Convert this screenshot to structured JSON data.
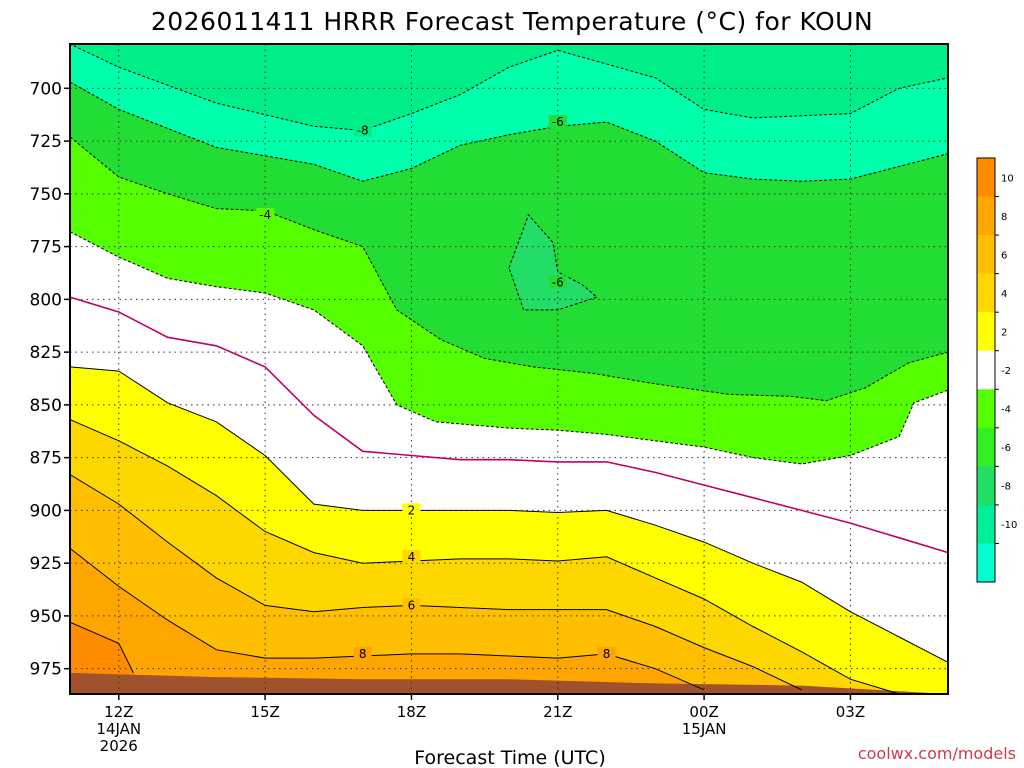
{
  "chart_data": {
    "type": "contour",
    "title": "2026011411 HRRR Forecast Temperature (°C) for KOUN",
    "xlabel": "Forecast Time (UTC)",
    "ylabel": "",
    "credit": "coolwx.com/models",
    "x_unit": "forecast hour from 2026-01-14 11Z",
    "xlim": [
      0,
      18
    ],
    "ylim": [
      987,
      679
    ],
    "y_ticks": [
      700,
      725,
      750,
      775,
      800,
      825,
      850,
      875,
      900,
      925,
      950,
      975
    ],
    "x_ticks": [
      {
        "x": 1,
        "lines": [
          "12Z",
          "14JAN",
          "2026"
        ]
      },
      {
        "x": 4,
        "lines": [
          "15Z"
        ]
      },
      {
        "x": 7,
        "lines": [
          "18Z"
        ]
      },
      {
        "x": 10,
        "lines": [
          "21Z"
        ]
      },
      {
        "x": 13,
        "lines": [
          "00Z",
          "15JAN"
        ]
      },
      {
        "x": 16,
        "lines": [
          "03Z"
        ]
      }
    ],
    "grid": true,
    "colorbar": {
      "ticks": [
        10,
        8,
        6,
        4,
        2,
        -2,
        -4,
        -6,
        -8,
        -10
      ],
      "bands": [
        {
          "color": "#ff8c00"
        },
        {
          "color": "#ffa500"
        },
        {
          "color": "#ffbf00"
        },
        {
          "color": "#ffd700"
        },
        {
          "color": "#ffff00"
        },
        {
          "color": "#ffffff"
        },
        {
          "color": "#55ff00"
        },
        {
          "color": "#33ee22"
        },
        {
          "color": "#22dd66"
        },
        {
          "color": "#00ee99"
        },
        {
          "color": "#00ffcc"
        }
      ]
    },
    "contours": [
      {
        "value": -10,
        "fill": "#00ffaa",
        "line": "none",
        "points": [
          [
            0,
            679
          ],
          [
            18,
            679
          ],
          [
            18,
            695
          ],
          [
            17,
            700
          ],
          [
            16,
            712
          ],
          [
            14,
            714
          ],
          [
            13,
            710
          ],
          [
            12,
            695
          ],
          [
            10,
            682
          ],
          [
            9,
            690
          ],
          [
            8,
            703
          ],
          [
            7,
            712
          ],
          [
            6,
            720
          ],
          [
            5,
            718
          ],
          [
            3,
            707
          ],
          [
            1,
            690
          ],
          [
            0,
            679
          ]
        ]
      },
      {
        "value": -8,
        "fill": "#00ee88",
        "line": "dashed",
        "labels": [
          {
            "x": 6,
            "y": 720,
            "text": "-8"
          }
        ],
        "points": [
          [
            0,
            679
          ],
          [
            18,
            679
          ],
          [
            18,
            695
          ],
          [
            17,
            700
          ],
          [
            16,
            712
          ],
          [
            14,
            714
          ],
          [
            13,
            710
          ],
          [
            12,
            695
          ],
          [
            10,
            682
          ],
          [
            9,
            690
          ],
          [
            8,
            703
          ],
          [
            7,
            712
          ],
          [
            6,
            720
          ],
          [
            5,
            718
          ],
          [
            3,
            707
          ],
          [
            1,
            690
          ],
          [
            0,
            679
          ]
        ]
      },
      {
        "value": -6,
        "fill": "#22dd33",
        "line": "dashed",
        "labels": [
          {
            "x": 10,
            "y": 716,
            "text": "-6"
          },
          {
            "x": 10,
            "y": 792,
            "text": "-6"
          }
        ],
        "points": [
          [
            0,
            697
          ],
          [
            1,
            710
          ],
          [
            3,
            728
          ],
          [
            5,
            736
          ],
          [
            6,
            744
          ],
          [
            7,
            738
          ],
          [
            8,
            727
          ],
          [
            9,
            722
          ],
          [
            10,
            718
          ],
          [
            11,
            716
          ],
          [
            12,
            725
          ],
          [
            13,
            740
          ],
          [
            14,
            743
          ],
          [
            15,
            744
          ],
          [
            16,
            743
          ],
          [
            17,
            737
          ],
          [
            18,
            731
          ]
        ]
      },
      {
        "value": -4,
        "fill": "#55ff00",
        "line": "dashed",
        "labels": [
          {
            "x": 4,
            "y": 760,
            "text": "-4"
          }
        ],
        "points": [
          [
            0,
            723
          ],
          [
            1,
            742
          ],
          [
            2,
            750
          ],
          [
            3,
            757
          ],
          [
            4,
            758
          ],
          [
            5,
            767
          ],
          [
            6,
            775
          ],
          [
            6.7,
            805
          ],
          [
            7.6,
            819
          ],
          [
            8.5,
            828
          ],
          [
            9.5,
            832
          ],
          [
            10.7,
            835
          ],
          [
            12,
            840
          ],
          [
            13.5,
            845
          ],
          [
            14.8,
            846
          ],
          [
            15.5,
            848
          ],
          [
            16.3,
            842
          ],
          [
            17.2,
            830
          ],
          [
            18,
            825
          ]
        ]
      },
      {
        "value": -2,
        "fill": "#ffffff",
        "line": "dashed",
        "points": [
          [
            0,
            768
          ],
          [
            1,
            780
          ],
          [
            2,
            790
          ],
          [
            3,
            794
          ],
          [
            4,
            797
          ],
          [
            5,
            805
          ],
          [
            6,
            822
          ],
          [
            6.7,
            850
          ],
          [
            7.5,
            858
          ],
          [
            9,
            861
          ],
          [
            10,
            862
          ],
          [
            11,
            864
          ],
          [
            12,
            867
          ],
          [
            13,
            870
          ],
          [
            14,
            875
          ],
          [
            15,
            878
          ],
          [
            16,
            874
          ],
          [
            17,
            865
          ],
          [
            17.3,
            849
          ],
          [
            18,
            843
          ]
        ]
      },
      {
        "value": 0,
        "fill": "none",
        "line": "solid",
        "color": "#c0006a",
        "points": [
          [
            0,
            799
          ],
          [
            1,
            806
          ],
          [
            2,
            818
          ],
          [
            3,
            822
          ],
          [
            4,
            832
          ],
          [
            5,
            855
          ],
          [
            6,
            872
          ],
          [
            7,
            874
          ],
          [
            8,
            876
          ],
          [
            9,
            876
          ],
          [
            10,
            877
          ],
          [
            11,
            877
          ],
          [
            12,
            882
          ],
          [
            13,
            888
          ],
          [
            14,
            894
          ],
          [
            15,
            900
          ],
          [
            16,
            906
          ],
          [
            17,
            913
          ],
          [
            18,
            920
          ]
        ]
      },
      {
        "value": 2,
        "fill": "#ffff00",
        "line": "solid",
        "labels": [
          {
            "x": 7,
            "y": 900,
            "text": "2"
          }
        ],
        "points": [
          [
            0,
            832
          ],
          [
            1,
            834
          ],
          [
            2,
            849
          ],
          [
            3,
            858
          ],
          [
            4,
            874
          ],
          [
            5,
            897
          ],
          [
            6,
            900
          ],
          [
            7,
            900
          ],
          [
            8,
            900
          ],
          [
            9,
            900
          ],
          [
            10,
            901
          ],
          [
            11,
            900
          ],
          [
            12,
            907
          ],
          [
            13,
            915
          ],
          [
            14,
            925
          ],
          [
            15,
            934
          ],
          [
            16,
            948
          ],
          [
            17,
            960
          ],
          [
            18,
            972
          ]
        ]
      },
      {
        "value": 4,
        "fill": "#ffd700",
        "line": "solid",
        "labels": [
          {
            "x": 7,
            "y": 922,
            "text": "4"
          }
        ],
        "points": [
          [
            0,
            857
          ],
          [
            1,
            867
          ],
          [
            2,
            879
          ],
          [
            3,
            893
          ],
          [
            4,
            910
          ],
          [
            5,
            920
          ],
          [
            6,
            925
          ],
          [
            7,
            924
          ],
          [
            8,
            923
          ],
          [
            9,
            923
          ],
          [
            10,
            924
          ],
          [
            11,
            922
          ],
          [
            12,
            932
          ],
          [
            13,
            942
          ],
          [
            14,
            955
          ],
          [
            15,
            967
          ],
          [
            16,
            980
          ],
          [
            17,
            987
          ]
        ]
      },
      {
        "value": 6,
        "fill": "#ffbf00",
        "line": "solid",
        "labels": [
          {
            "x": 7,
            "y": 945,
            "text": "6"
          }
        ],
        "points": [
          [
            0,
            883
          ],
          [
            1,
            897
          ],
          [
            2,
            915
          ],
          [
            3,
            932
          ],
          [
            4,
            945
          ],
          [
            5,
            948
          ],
          [
            6,
            946
          ],
          [
            7,
            945
          ],
          [
            8,
            946
          ],
          [
            9,
            947
          ],
          [
            10,
            947
          ],
          [
            11,
            947
          ],
          [
            12,
            955
          ],
          [
            13,
            965
          ],
          [
            14,
            974
          ],
          [
            15,
            985
          ]
        ]
      },
      {
        "value": 8,
        "fill": "#ffa500",
        "line": "solid",
        "labels": [
          {
            "x": 6,
            "y": 968,
            "text": "8"
          },
          {
            "x": 11,
            "y": 968,
            "text": "8"
          }
        ],
        "points": [
          [
            0,
            918
          ],
          [
            1,
            936
          ],
          [
            2,
            952
          ],
          [
            3,
            966
          ],
          [
            4,
            970
          ],
          [
            5,
            970
          ],
          [
            6,
            969
          ],
          [
            7,
            968
          ],
          [
            8,
            968
          ],
          [
            9,
            969
          ],
          [
            10,
            970
          ],
          [
            11,
            968
          ],
          [
            12,
            975
          ],
          [
            13,
            985
          ]
        ]
      },
      {
        "value": 10,
        "fill": "#ff8c00",
        "line": "solid",
        "points": [
          [
            0,
            953
          ],
          [
            1,
            963
          ],
          [
            1.3,
            977
          ]
        ]
      }
    ],
    "ground": {
      "color": "#a0522d",
      "points": [
        [
          0,
          977
        ],
        [
          3,
          979
        ],
        [
          6,
          980
        ],
        [
          9,
          980
        ],
        [
          12,
          982
        ],
        [
          15,
          983
        ],
        [
          18,
          987
        ]
      ]
    }
  }
}
